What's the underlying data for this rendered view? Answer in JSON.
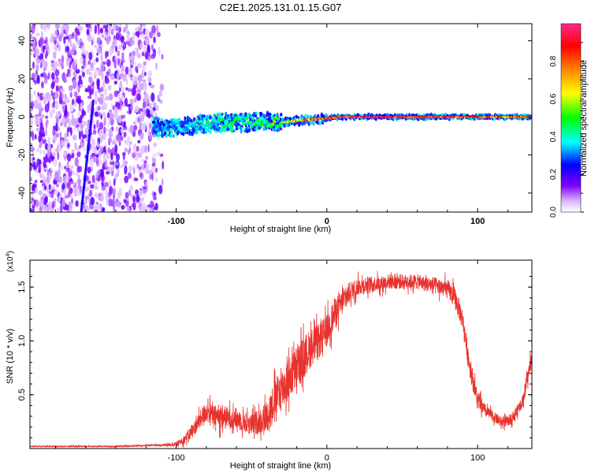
{
  "title": "C2E1.2025.131.01.15.G07",
  "chart_data": [
    {
      "type": "heatmap",
      "xlabel": "Height of straight line (km)",
      "ylabel": "Frequency (Hz)",
      "xlim": [
        -197,
        136
      ],
      "ylim": [
        -50,
        49
      ],
      "xticks": [
        -100,
        0,
        100
      ],
      "xtick_labels": [
        "-100",
        "0",
        "100"
      ],
      "yticks": [
        -40,
        -20,
        0,
        20,
        40
      ],
      "ytick_labels": [
        "-40",
        "-20",
        "0",
        "20",
        "40"
      ],
      "colorbar": {
        "label": "Normalized spectral amplitude",
        "range": [
          0,
          1
        ],
        "ticks": [
          0.0,
          0.2,
          0.4,
          0.6,
          0.8
        ],
        "tick_labels": [
          "0.0",
          "0.2",
          "0.4",
          "0.6",
          "0.8"
        ],
        "colors": [
          "#ffffff",
          "#d9b3ff",
          "#8000ff",
          "#0000ff",
          "#00ffff",
          "#00ff00",
          "#ffff00",
          "#ff8000",
          "#ff0000",
          "#ff2a8c"
        ]
      },
      "noise_region_x": [
        -197,
        -108
      ],
      "vertical_streak": {
        "x_top": -155,
        "x_bottom": -163,
        "y_top": 8,
        "y_bottom": -50
      },
      "signal_track": [
        {
          "x": -115,
          "y": -5,
          "amp": 0.3
        },
        {
          "x": -100,
          "y": -6,
          "amp": 0.35
        },
        {
          "x": -85,
          "y": -4,
          "amp": 0.4
        },
        {
          "x": -70,
          "y": -3,
          "amp": 0.45
        },
        {
          "x": -55,
          "y": -3,
          "amp": 0.45
        },
        {
          "x": -40,
          "y": -2,
          "amp": 0.5
        },
        {
          "x": -30,
          "y": -3,
          "amp": 0.55
        },
        {
          "x": -20,
          "y": -2,
          "amp": 0.75
        },
        {
          "x": -5,
          "y": -1,
          "amp": 0.85
        },
        {
          "x": 10,
          "y": 0,
          "amp": 0.95
        },
        {
          "x": 30,
          "y": 0,
          "amp": 0.97
        },
        {
          "x": 50,
          "y": 0,
          "amp": 0.97
        },
        {
          "x": 70,
          "y": 0,
          "amp": 0.95
        },
        {
          "x": 90,
          "y": 0,
          "amp": 0.9
        },
        {
          "x": 110,
          "y": 0,
          "amp": 0.85
        },
        {
          "x": 136,
          "y": 0,
          "amp": 0.8
        }
      ]
    },
    {
      "type": "line",
      "xlabel": "Height of straight line (km)",
      "ylabel": "SNR (10 * v/v)",
      "y_multiplier_label": "(x10",
      "y_multiplier_exp": "4",
      "y_multiplier_close": ")",
      "xlim": [
        -197,
        136
      ],
      "ylim": [
        0,
        1.75
      ],
      "xticks": [
        -100,
        0,
        100
      ],
      "xtick_labels": [
        "-100",
        "0",
        "100"
      ],
      "yticks": [
        0.5,
        1.0,
        1.5
      ],
      "ytick_labels": [
        "0.5",
        "1.0",
        "1.5"
      ],
      "color": "#e8322e",
      "series": [
        {
          "x": [
            -197,
            -180,
            -160,
            -140,
            -120,
            -110,
            -100,
            -95,
            -90,
            -85,
            -80,
            -75,
            -70,
            -65,
            -60,
            -55,
            -50,
            -45,
            -40,
            -35,
            -30,
            -25,
            -20,
            -15,
            -10,
            -5,
            0,
            5,
            10,
            15,
            20,
            25,
            30,
            35,
            40,
            45,
            50,
            55,
            60,
            65,
            70,
            75,
            80,
            85,
            90,
            95,
            100,
            105,
            110,
            115,
            120,
            125,
            130,
            136
          ],
          "y": [
            0.02,
            0.02,
            0.02,
            0.02,
            0.03,
            0.03,
            0.04,
            0.08,
            0.15,
            0.25,
            0.35,
            0.3,
            0.3,
            0.28,
            0.28,
            0.25,
            0.22,
            0.25,
            0.3,
            0.45,
            0.55,
            0.65,
            0.75,
            0.85,
            0.95,
            1.0,
            1.1,
            1.25,
            1.35,
            1.45,
            1.5,
            1.52,
            1.53,
            1.53,
            1.55,
            1.55,
            1.55,
            1.55,
            1.55,
            1.53,
            1.52,
            1.5,
            1.48,
            1.4,
            1.2,
            0.75,
            0.45,
            0.35,
            0.3,
            0.25,
            0.25,
            0.32,
            0.45,
            0.85
          ],
          "noise": [
            0.005,
            0.005,
            0.006,
            0.006,
            0.008,
            0.01,
            0.02,
            0.04,
            0.06,
            0.08,
            0.1,
            0.1,
            0.12,
            0.1,
            0.1,
            0.1,
            0.1,
            0.12,
            0.15,
            0.18,
            0.2,
            0.2,
            0.2,
            0.2,
            0.18,
            0.16,
            0.15,
            0.15,
            0.12,
            0.1,
            0.08,
            0.08,
            0.07,
            0.07,
            0.07,
            0.07,
            0.07,
            0.07,
            0.07,
            0.07,
            0.08,
            0.08,
            0.09,
            0.1,
            0.1,
            0.1,
            0.08,
            0.06,
            0.05,
            0.05,
            0.05,
            0.05,
            0.06,
            0.08
          ]
        }
      ]
    }
  ]
}
